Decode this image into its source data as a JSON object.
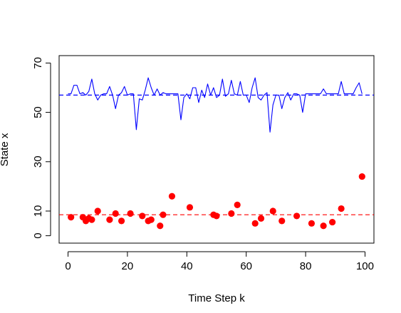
{
  "chart_data": {
    "type": "scatter",
    "xlabel": "Time Step k",
    "ylabel": "State x",
    "xlim": [
      -3,
      103
    ],
    "ylim": [
      -3,
      73
    ],
    "xticks": [
      0,
      20,
      40,
      60,
      80,
      100
    ],
    "yticks": [
      0,
      10,
      30,
      50,
      70
    ],
    "grid": false,
    "series": [
      {
        "type": "line",
        "color": "#0000ff",
        "x": [
          0,
          1,
          2,
          3,
          4,
          5,
          6,
          7,
          8,
          9,
          10,
          11,
          12,
          13,
          14,
          15,
          16,
          17,
          18,
          19,
          20,
          21,
          22,
          23,
          24,
          25,
          26,
          27,
          28,
          29,
          30,
          31,
          32,
          33,
          34,
          35,
          36,
          37,
          38,
          39,
          40,
          41,
          42,
          43,
          44,
          45,
          46,
          47,
          48,
          49,
          50,
          51,
          52,
          53,
          54,
          55,
          56,
          57,
          58,
          59,
          60,
          61,
          62,
          63,
          64,
          65,
          66,
          67,
          68,
          69,
          70,
          71,
          72,
          73,
          74,
          75,
          76,
          77,
          78,
          79,
          80,
          81,
          82,
          83,
          84,
          85,
          86,
          87,
          88,
          89,
          90,
          91,
          92,
          93,
          94,
          95,
          96,
          97,
          98,
          99
        ],
        "y": [
          57.5,
          57.5,
          61,
          61,
          57.5,
          58,
          57,
          58.5,
          63.5,
          57.5,
          55,
          57,
          57.5,
          57.5,
          60.5,
          57,
          51.5,
          57,
          58,
          60.5,
          57,
          57.5,
          57.5,
          43,
          55.5,
          55,
          59,
          64,
          60,
          57,
          59.5,
          57,
          58,
          57.5,
          57.5,
          57.5,
          57.5,
          57.5,
          47,
          56,
          57.5,
          55.5,
          60,
          60,
          54,
          59,
          56,
          61.5,
          57,
          60,
          56,
          57,
          63.5,
          56.5,
          57.5,
          63,
          57.5,
          57,
          62.5,
          57,
          57,
          54,
          60,
          64,
          56,
          55,
          57,
          58,
          42,
          53,
          57,
          57,
          51.5,
          56,
          58,
          55,
          57.5,
          57.5,
          57,
          50,
          57.5,
          57.5,
          57.5,
          57.5,
          57.5,
          57.5,
          59.5,
          57.5,
          57.5,
          57.5,
          57.5,
          57.5,
          62.5,
          57.5,
          57.5,
          57.5,
          57.5,
          60,
          62,
          57.5
        ]
      },
      {
        "type": "hline",
        "color": "#0000ff",
        "linestyle": "dashed",
        "y": 57
      },
      {
        "type": "scatter",
        "color": "#ff0000",
        "x": [
          1,
          5,
          6,
          7,
          8,
          10,
          14,
          16,
          18,
          21,
          25,
          27,
          28,
          31,
          32,
          35,
          41,
          49,
          50,
          55,
          57,
          63,
          65,
          69,
          72,
          77,
          82,
          86,
          89,
          92,
          99
        ],
        "y": [
          7.5,
          7.5,
          6,
          7,
          6.5,
          10,
          6.5,
          9,
          6,
          9,
          8,
          6,
          6.5,
          4,
          8.5,
          16,
          11.5,
          8.5,
          8,
          9,
          12.5,
          5,
          7,
          10,
          6,
          8,
          5,
          4,
          5.5,
          11,
          24
        ]
      },
      {
        "type": "hline",
        "color": "#ff0000",
        "linestyle": "dashed",
        "y": 8.5
      }
    ]
  }
}
